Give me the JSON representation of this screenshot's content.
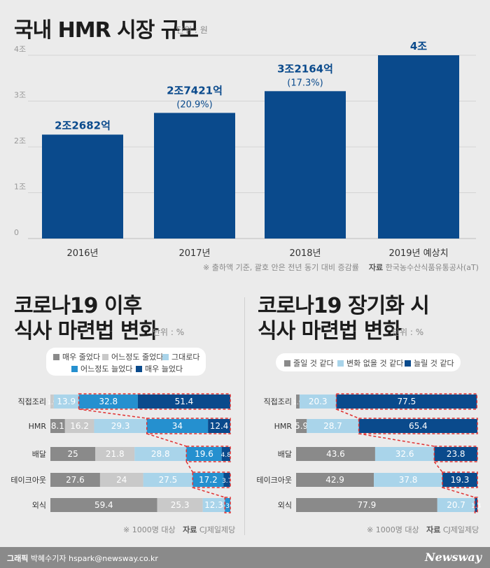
{
  "colors": {
    "bar": "#0a4a8c",
    "label": "#0a4a8c",
    "very_less": "#8a8a8a",
    "less": "#c9c9c9",
    "same": "#a9d4ea",
    "more": "#2590cf",
    "very_more": "#0a4a8c",
    "highlight": "#e03030"
  },
  "header": {
    "title": "국내 HMR 시장 규모",
    "unit": "단위 : 원"
  },
  "top_note": {
    "note": "※ 출하액 기준, 괄호 안은 전년 동기 대비 증감률",
    "source_label": "자료",
    "source": "한국농수산식품유통공사(aT)"
  },
  "left_panel": {
    "title_line1": "코로나19 이후",
    "title_line2": "식사 마련법 변화",
    "unit": "단위 : %",
    "legend": [
      "매우 줄었다",
      "어느정도 줄었다",
      "그대로다",
      "어느정도 늘었다",
      "매우 늘었다"
    ],
    "note": "※ 1000명 대상",
    "source_label": "자료",
    "source": "CJ제일제당"
  },
  "right_panel": {
    "title_line1": "코로나19 장기화 시",
    "title_line2": "식사 마련법 변화",
    "unit": "단위 : %",
    "legend": [
      "줄일 것 같다",
      "변화 없을 것 같다",
      "늘릴 것 같다"
    ],
    "note": "※ 1000명 대상",
    "source_label": "자료",
    "source": "CJ제일제당"
  },
  "footer": {
    "credit_label": "그래픽",
    "credit": "박혜수기자 hspark@newsway.co.kr",
    "logo": "Newsway"
  },
  "chart_data": [
    {
      "type": "bar",
      "title": "국내 HMR 시장 규모",
      "categories": [
        "2016년",
        "2017년",
        "2018년",
        "2019년 예상치"
      ],
      "values": [
        2.2682,
        2.7421,
        3.2164,
        4.0
      ],
      "value_labels": [
        "2조2682억",
        "2조7421억",
        "3조2164억",
        "4조"
      ],
      "growth_labels": [
        "",
        "(20.9%)",
        "(17.3%)",
        ""
      ],
      "yticks": [
        "0",
        "1조",
        "2조",
        "3조",
        "4조"
      ],
      "ylim": [
        0,
        4
      ]
    },
    {
      "type": "bar",
      "stacked": "horizontal",
      "title": "코로나19 이후 식사 마련법 변화",
      "categories": [
        "직접조리",
        "HMR",
        "배달",
        "테이크아웃",
        "외식"
      ],
      "series": [
        {
          "name": "매우 줄었다",
          "values": [
            1.9,
            8.1,
            25,
            27.6,
            59.4
          ]
        },
        {
          "name": "어느정도 줄었다",
          "values": [
            13.9,
            16.2,
            21.8,
            24,
            25.3
          ]
        },
        {
          "name": "그대로다",
          "values": [
            32.8,
            29.3,
            28.8,
            27.5,
            12.3
          ]
        },
        {
          "name": "어느정도 늘었다",
          "values": [
            51.4,
            34,
            19.6,
            17.2,
            3
          ]
        },
        {
          "name": "매우 늘었다",
          "values": [
            null,
            12.4,
            4.8,
            3.7,
            null
          ]
        }
      ],
      "value_labels": [
        [
          "1.9",
          "13.9",
          "32.8",
          "51.4"
        ],
        [
          "8.1",
          "16.2",
          "29.3",
          "34",
          "12.4"
        ],
        [
          "25",
          "21.8",
          "28.8",
          "19.6",
          "4.8"
        ],
        [
          "27.6",
          "24",
          "27.5",
          "17.2",
          "3.7"
        ],
        [
          "59.4",
          "25.3",
          "12.3",
          "3"
        ]
      ],
      "segment_colors": [
        [
          "less",
          "same",
          "more",
          "very_more"
        ],
        [
          "very_less",
          "less",
          "same",
          "more",
          "very_more"
        ],
        [
          "very_less",
          "less",
          "same",
          "more",
          "very_more"
        ],
        [
          "very_less",
          "less",
          "same",
          "more",
          "very_more"
        ],
        [
          "very_less",
          "less",
          "same",
          "more"
        ]
      ]
    },
    {
      "type": "bar",
      "stacked": "horizontal",
      "title": "코로나19 장기화 시 식사 마련법 변화",
      "categories": [
        "직접조리",
        "HMR",
        "배달",
        "테이크아웃",
        "외식"
      ],
      "series": [
        {
          "name": "줄일 것 같다",
          "values": [
            1.9,
            5.9,
            43.6,
            42.9,
            77.9
          ]
        },
        {
          "name": "변화 없을 것 같다",
          "values": [
            20.3,
            28.7,
            32.6,
            37.8,
            20.7
          ]
        },
        {
          "name": "늘릴 것 같다",
          "values": [
            77.5,
            65.4,
            23.8,
            19.3,
            1.4
          ]
        }
      ],
      "value_labels": [
        [
          "1.9",
          "20.3",
          "77.5"
        ],
        [
          "5.9",
          "28.7",
          "65.4"
        ],
        [
          "43.6",
          "32.6",
          "23.8"
        ],
        [
          "42.9",
          "37.8",
          "19.3"
        ],
        [
          "77.9",
          "20.7",
          "1.4"
        ]
      ]
    }
  ]
}
